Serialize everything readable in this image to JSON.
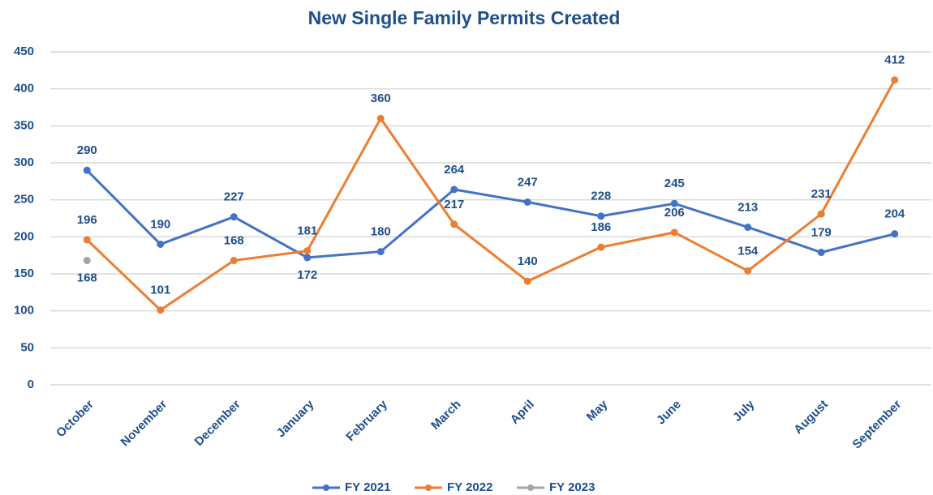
{
  "chart_data": {
    "type": "line",
    "title": "New Single Family Permits Created",
    "categories": [
      "October",
      "November",
      "December",
      "January",
      "February",
      "March",
      "April",
      "May",
      "June",
      "July",
      "August",
      "September"
    ],
    "series": [
      {
        "name": "FY 2021",
        "color": "#4472c4",
        "values": [
          290,
          190,
          227,
          172,
          180,
          264,
          247,
          228,
          245,
          213,
          179,
          204
        ]
      },
      {
        "name": "FY 2022",
        "color": "#ed7d31",
        "values": [
          196,
          101,
          168,
          181,
          360,
          217,
          140,
          186,
          206,
          154,
          231,
          412
        ]
      },
      {
        "name": "FY 2023",
        "color": "#a5a5a5",
        "values": [
          168,
          null,
          null,
          null,
          null,
          null,
          null,
          null,
          null,
          null,
          null,
          null
        ]
      }
    ],
    "ylim": [
      0,
      450
    ],
    "yticks": [
      0,
      50,
      100,
      150,
      200,
      250,
      300,
      350,
      400,
      450
    ],
    "grid": true,
    "legend": "bottom"
  }
}
